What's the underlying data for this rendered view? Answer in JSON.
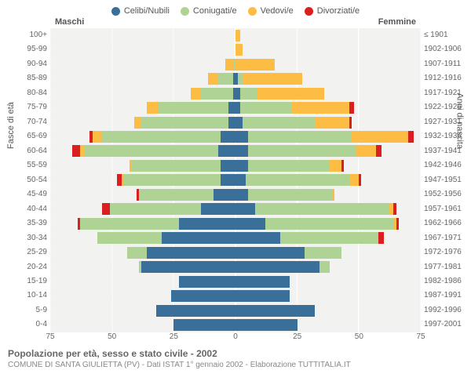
{
  "legend": [
    {
      "label": "Celibi/Nubili",
      "color": "#3a6f9a"
    },
    {
      "label": "Coniugati/e",
      "color": "#aed394"
    },
    {
      "label": "Vedovi/e",
      "color": "#fdbc44"
    },
    {
      "label": "Divorziati/e",
      "color": "#d91f1f"
    }
  ],
  "side_left": "Maschi",
  "side_right": "Femmine",
  "axis_left_label": "Fasce di età",
  "axis_right_label": "Anni di nascita",
  "title": "Popolazione per età, sesso e stato civile - 2002",
  "subtitle": "COMUNE DI SANTA GIULIETTA (PV) - Dati ISTAT 1° gennaio 2002 - Elaborazione TUTTITALIA.IT",
  "x_max": 75,
  "x_ticks": [
    75,
    50,
    25,
    0,
    25,
    50,
    75
  ],
  "background_color": "#f2f2f0",
  "rows": [
    {
      "age": "100+",
      "year": "≤ 1901",
      "m": [
        0,
        0,
        0,
        0
      ],
      "f": [
        0,
        0,
        2,
        0
      ]
    },
    {
      "age": "95-99",
      "year": "1902-1906",
      "m": [
        0,
        0,
        0,
        0
      ],
      "f": [
        0,
        0,
        3,
        0
      ]
    },
    {
      "age": "90-94",
      "year": "1907-1911",
      "m": [
        0,
        1,
        3,
        0
      ],
      "f": [
        0,
        0,
        16,
        0
      ]
    },
    {
      "age": "85-89",
      "year": "1912-1916",
      "m": [
        1,
        6,
        4,
        0
      ],
      "f": [
        1,
        2,
        24,
        0
      ]
    },
    {
      "age": "80-84",
      "year": "1917-1921",
      "m": [
        1,
        13,
        4,
        0
      ],
      "f": [
        2,
        7,
        27,
        0
      ]
    },
    {
      "age": "75-79",
      "year": "1922-1926",
      "m": [
        3,
        28,
        5,
        0
      ],
      "f": [
        2,
        21,
        23,
        2
      ]
    },
    {
      "age": "70-74",
      "year": "1927-1931",
      "m": [
        3,
        35,
        3,
        0
      ],
      "f": [
        3,
        29,
        14,
        1
      ]
    },
    {
      "age": "65-69",
      "year": "1932-1936",
      "m": [
        6,
        48,
        4,
        1
      ],
      "f": [
        5,
        42,
        23,
        2
      ]
    },
    {
      "age": "60-64",
      "year": "1937-1941",
      "m": [
        7,
        54,
        2,
        3
      ],
      "f": [
        5,
        44,
        8,
        2
      ]
    },
    {
      "age": "55-59",
      "year": "1942-1946",
      "m": [
        6,
        36,
        1,
        0
      ],
      "f": [
        5,
        33,
        5,
        1
      ]
    },
    {
      "age": "50-54",
      "year": "1947-1951",
      "m": [
        6,
        39,
        1,
        2
      ],
      "f": [
        4,
        42,
        4,
        1
      ]
    },
    {
      "age": "45-49",
      "year": "1952-1956",
      "m": [
        9,
        30,
        0,
        1
      ],
      "f": [
        5,
        34,
        1,
        0
      ]
    },
    {
      "age": "40-44",
      "year": "1957-1961",
      "m": [
        14,
        37,
        0,
        3
      ],
      "f": [
        8,
        54,
        2,
        1
      ]
    },
    {
      "age": "35-39",
      "year": "1962-1966",
      "m": [
        23,
        40,
        0,
        1
      ],
      "f": [
        12,
        52,
        1,
        1
      ]
    },
    {
      "age": "30-34",
      "year": "1967-1971",
      "m": [
        30,
        26,
        0,
        0
      ],
      "f": [
        18,
        40,
        0,
        2
      ]
    },
    {
      "age": "25-29",
      "year": "1972-1976",
      "m": [
        36,
        8,
        0,
        0
      ],
      "f": [
        28,
        15,
        0,
        0
      ]
    },
    {
      "age": "20-24",
      "year": "1977-1981",
      "m": [
        38,
        1,
        0,
        0
      ],
      "f": [
        34,
        4,
        0,
        0
      ]
    },
    {
      "age": "15-19",
      "year": "1982-1986",
      "m": [
        23,
        0,
        0,
        0
      ],
      "f": [
        22,
        0,
        0,
        0
      ]
    },
    {
      "age": "10-14",
      "year": "1987-1991",
      "m": [
        26,
        0,
        0,
        0
      ],
      "f": [
        22,
        0,
        0,
        0
      ]
    },
    {
      "age": "5-9",
      "year": "1992-1996",
      "m": [
        32,
        0,
        0,
        0
      ],
      "f": [
        32,
        0,
        0,
        0
      ]
    },
    {
      "age": "0-4",
      "year": "1997-2001",
      "m": [
        25,
        0,
        0,
        0
      ],
      "f": [
        25,
        0,
        0,
        0
      ]
    }
  ]
}
